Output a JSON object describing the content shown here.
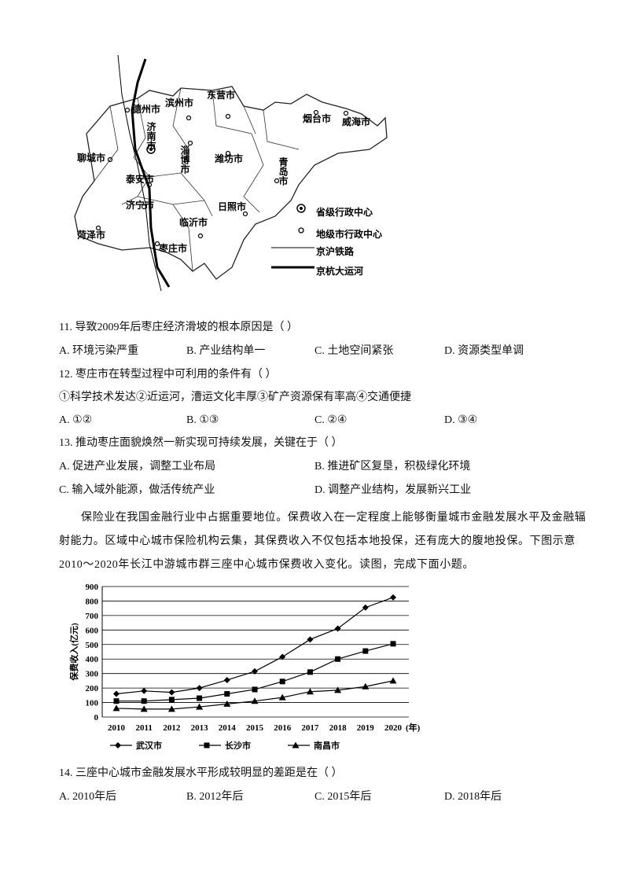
{
  "map": {
    "labels": [
      "德州市",
      "滨州市",
      "东营市",
      "烟台市",
      "威海市",
      "济南市",
      "淄博市",
      "潍坊市",
      "聊城市",
      "泰安市",
      "青岛市",
      "济宁市",
      "日照市",
      "临沂市",
      "菏泽市",
      "枣庄市"
    ],
    "legend": [
      "省级行政中心",
      "地级市行政中心",
      "京沪铁路",
      "京杭大运河"
    ]
  },
  "questions": [
    {
      "stem": "11. 导致2009年后枣庄经济滑坡的根本原因是（    ）",
      "options": [
        "A. 环境污染严重",
        "B. 产业结构单一",
        "C. 土地空间紧张",
        "D. 资源类型单调"
      ]
    },
    {
      "stem": "12. 枣庄市在转型过程中可利用的条件有（    ）",
      "statement": "①科学技术发达②近运河，漕运文化丰厚③矿产资源保有率高④交通便捷",
      "options": [
        "A. ①②",
        "B. ①③",
        "C. ②④",
        "D. ③④"
      ]
    },
    {
      "stem": "13. 推动枣庄面貌焕然一新实现可持续发展，关键在于（    ）",
      "options": [
        "A. 促进产业发展，调整工业布局",
        "B. 推进矿区复垦，积极绿化环境",
        "C. 输入域外能源，做活传统产业",
        "D. 调整产业结构，发展新兴工业"
      ]
    },
    {
      "stem": "14. 三座中心城市金融发展水平形成较明显的差距是在（    ）",
      "options": [
        "A. 2010年后",
        "B. 2012年后",
        "C. 2015年后",
        "D. 2018年后"
      ]
    }
  ],
  "paragraph": "保险业在我国金融行业中占据重要地位。保费收入在一定程度上能够衡量城市金融发展水平及金融辐射能力。区域中心城市保险机构云集，其保费收入不仅包括本地投保，还有庞大的腹地投保。下图示意2010～2020年长江中游城市群三座中心城市保费收入变化。读图，完成下面小题。",
  "chart": {
    "type": "line",
    "ylabel": "保费收入(亿元)",
    "xlabel": "(年)",
    "categories": [
      "2010",
      "2011",
      "2012",
      "2013",
      "2014",
      "2015",
      "2016",
      "2017",
      "2018",
      "2019",
      "2020"
    ],
    "ylim": [
      0,
      900
    ],
    "yticks": [
      0,
      100,
      200,
      300,
      400,
      500,
      600,
      700,
      800,
      900
    ],
    "grid": true,
    "series": [
      {
        "name": "武汉市",
        "color": "#000000",
        "marker": "diamond",
        "values": [
          160,
          180,
          170,
          200,
          255,
          315,
          415,
          535,
          610,
          755,
          825
        ]
      },
      {
        "name": "长沙市",
        "color": "#000000",
        "marker": "square",
        "values": [
          110,
          110,
          120,
          130,
          160,
          190,
          245,
          310,
          400,
          455,
          505
        ]
      },
      {
        "name": "南昌市",
        "color": "#000000",
        "marker": "triangle",
        "values": [
          60,
          55,
          55,
          70,
          90,
          110,
          135,
          175,
          185,
          210,
          250
        ]
      }
    ]
  }
}
